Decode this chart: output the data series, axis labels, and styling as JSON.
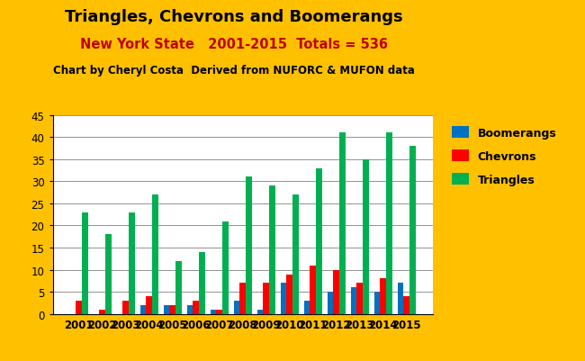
{
  "title": "Triangles, Chevrons and Boomerangs",
  "subtitle1": "New York State   2001-2015  Totals = 536",
  "subtitle2": "Chart by Cheryl Costa  Derived from NUFORC & MUFON data",
  "years": [
    2001,
    2002,
    2003,
    2004,
    2005,
    2006,
    2007,
    2008,
    2009,
    2010,
    2011,
    2012,
    2013,
    2014,
    2015
  ],
  "boomerangs": [
    0,
    0,
    0,
    2,
    2,
    2,
    1,
    3,
    1,
    7,
    3,
    5,
    6,
    5,
    7
  ],
  "chevrons": [
    3,
    1,
    3,
    4,
    2,
    3,
    1,
    7,
    7,
    9,
    11,
    10,
    7,
    8,
    4
  ],
  "triangles": [
    23,
    18,
    23,
    27,
    12,
    14,
    21,
    31,
    29,
    27,
    33,
    41,
    35,
    41,
    38
  ],
  "bar_colors": {
    "boomerangs": "#0070C0",
    "chevrons": "#FF0000",
    "triangles": "#00B050"
  },
  "background_color": "#FFC000",
  "plot_background": "#FFFFFF",
  "ylim": [
    0,
    45
  ],
  "yticks": [
    0,
    5,
    10,
    15,
    20,
    25,
    30,
    35,
    40,
    45
  ],
  "title_fontsize": 13,
  "subtitle1_fontsize": 10.5,
  "subtitle2_fontsize": 8.5,
  "legend_labels": [
    "Boomerangs",
    "Chevrons",
    "Triangles"
  ]
}
